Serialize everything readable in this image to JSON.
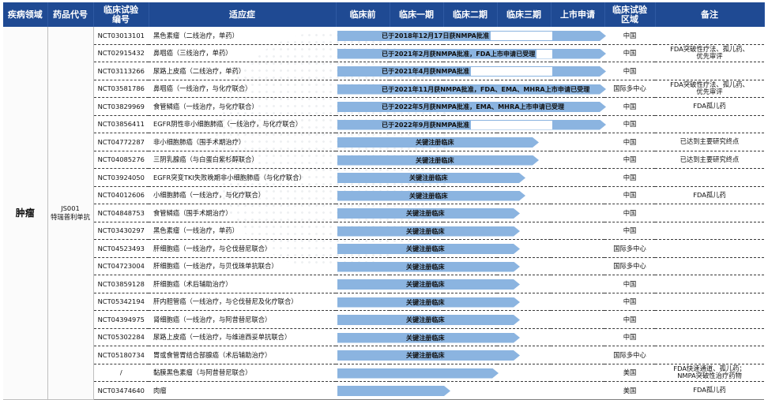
{
  "header": {
    "area": "疾病领域",
    "drug": "药品代号",
    "nct": "临床试验\n编号",
    "indication": "适应症",
    "preclinical": "临床前",
    "phase1": "临床一期",
    "phase2": "临床二期",
    "phase3": "临床三期",
    "filing": "上市申请",
    "region": "临床试验\n区域",
    "notes": "备注"
  },
  "area_label": "肿瘤",
  "drug_label": "JS001\n特瑞普利单抗",
  "rows": [
    {
      "nct": "NCT03013101",
      "indication": "黑色素瘤（二线治疗，单药）",
      "stage": 1.0,
      "label": "已于2018年12月17日获NMPA批准",
      "region": "中国",
      "note": ""
    },
    {
      "nct": "NCT02915432",
      "indication": "鼻咽癌（三线治疗，单药）",
      "stage": 1.0,
      "label": "已于2021年2月获NMPA批准，FDA上市申请已受理",
      "region": "中国",
      "note": "FDA突破性疗法、孤儿药、\n优先审评"
    },
    {
      "nct": "NCT03113266",
      "indication": "尿路上皮癌（二线治疗，单药）",
      "stage": 1.0,
      "label": "已于2021年4月获NMPA批准",
      "region": "中国",
      "note": ""
    },
    {
      "nct": "NCT03581786",
      "indication": "鼻咽癌（一线治疗，与化疗联合）",
      "stage": 1.0,
      "label": "已于2021年11月获NMPA批准，FDA、EMA、MHRA上市申请已受理",
      "region": "国际多中心",
      "note": "FDA突破性疗法、孤儿药、\n优先审评"
    },
    {
      "nct": "NCT03829969",
      "indication": "食管鳞癌（一线治疗，与化疗联合）",
      "stage": 1.0,
      "label": "已于2022年5月获NMPA批准，EMA、MHRA上市申请已受理",
      "region": "中国",
      "note": "FDA孤儿药"
    },
    {
      "nct": "NCT03856411",
      "indication": "EGFR阴性非小细胞肺癌（一线治疗，与化疗联合）",
      "stage": 1.0,
      "label": "已于2022年9月获NMPA批准",
      "region": "中国",
      "note": ""
    },
    {
      "nct": "NCT04772287",
      "indication": "非小细胞肺癌（围手术期治疗）",
      "stage": 0.75,
      "label": "关键注册临床",
      "region": "中国",
      "note": "已达到主要研究终点"
    },
    {
      "nct": "NCT04085276",
      "indication": "三阴乳腺癌（与白蛋白紫杉醇联合）",
      "stage": 0.75,
      "label": "关键注册临床",
      "region": "中国",
      "note": "已达到主要研究终点"
    },
    {
      "nct": "NCT03924050",
      "indication": "EGFR突变TKI失败晚期非小细胞肺癌（与化疗联合）",
      "stage": 0.7,
      "label": "关键注册临床",
      "region": "中国",
      "note": ""
    },
    {
      "nct": "NCT04012606",
      "indication": "小细胞肺癌（一线治疗，与化疗联合）",
      "stage": 0.7,
      "label": "关键注册临床",
      "region": "中国",
      "note": "FDA孤儿药"
    },
    {
      "nct": "NCT04848753",
      "indication": "食管鳞癌（围手术期治疗）",
      "stage": 0.68,
      "label": "关键注册临床",
      "region": "中国",
      "note": ""
    },
    {
      "nct": "NCT03430297",
      "indication": "黑色素瘤（一线治疗，单药）",
      "stage": 0.68,
      "label": "关键注册临床",
      "region": "中国",
      "note": ""
    },
    {
      "nct": "NCT04523493",
      "indication": "肝细胞癌（一线治疗，与仑伐替尼联合）",
      "stage": 0.68,
      "label": "关键注册临床",
      "region": "国际多中心",
      "note": ""
    },
    {
      "nct": "NCT04723004",
      "indication": "肝细胞癌（一线治疗，与贝伐珠单抗联合）",
      "stage": 0.68,
      "label": "关键注册临床",
      "region": "国际多中心",
      "note": ""
    },
    {
      "nct": "NCT03859128",
      "indication": "肝细胞癌（术后辅助治疗）",
      "stage": 0.68,
      "label": "关键注册临床",
      "region": "中国",
      "note": ""
    },
    {
      "nct": "NCT05342194",
      "indication": "肝内胆管癌（一线治疗，与仑伐替尼及化疗联合）",
      "stage": 0.68,
      "label": "关键注册临床",
      "region": "中国",
      "note": ""
    },
    {
      "nct": "NCT04394975",
      "indication": "肾细胞癌（一线治疗，与阿昔替尼联合）",
      "stage": 0.68,
      "label": "关键注册临床",
      "region": "中国",
      "note": ""
    },
    {
      "nct": "NCT05302284",
      "indication": "尿路上皮癌（一线治疗，与维迪西妥单抗联合）",
      "stage": 0.68,
      "label": "关键注册临床",
      "region": "中国",
      "note": ""
    },
    {
      "nct": "NCT05180734",
      "indication": "胃或食管胃结合部腺癌（术后辅助治疗）",
      "stage": 0.68,
      "label": "关键注册临床",
      "region": "国际多中心",
      "note": ""
    },
    {
      "nct": "/",
      "indication": "黏膜黑色素瘤（与阿昔替尼联合）",
      "stage": 0.6,
      "label": "",
      "region": "美国",
      "note": "FDA快速通道、孤儿药；\nNMPA突破性治疗药物"
    },
    {
      "nct": "NCT03474640",
      "indication": "肉瘤",
      "stage": 0.42,
      "label": "",
      "region": "美国",
      "note": "FDA孤儿药"
    }
  ],
  "colors": {
    "header_bg": "#1f4a93",
    "header_text": "#ffffff",
    "arrow": "#8bb4e0"
  }
}
